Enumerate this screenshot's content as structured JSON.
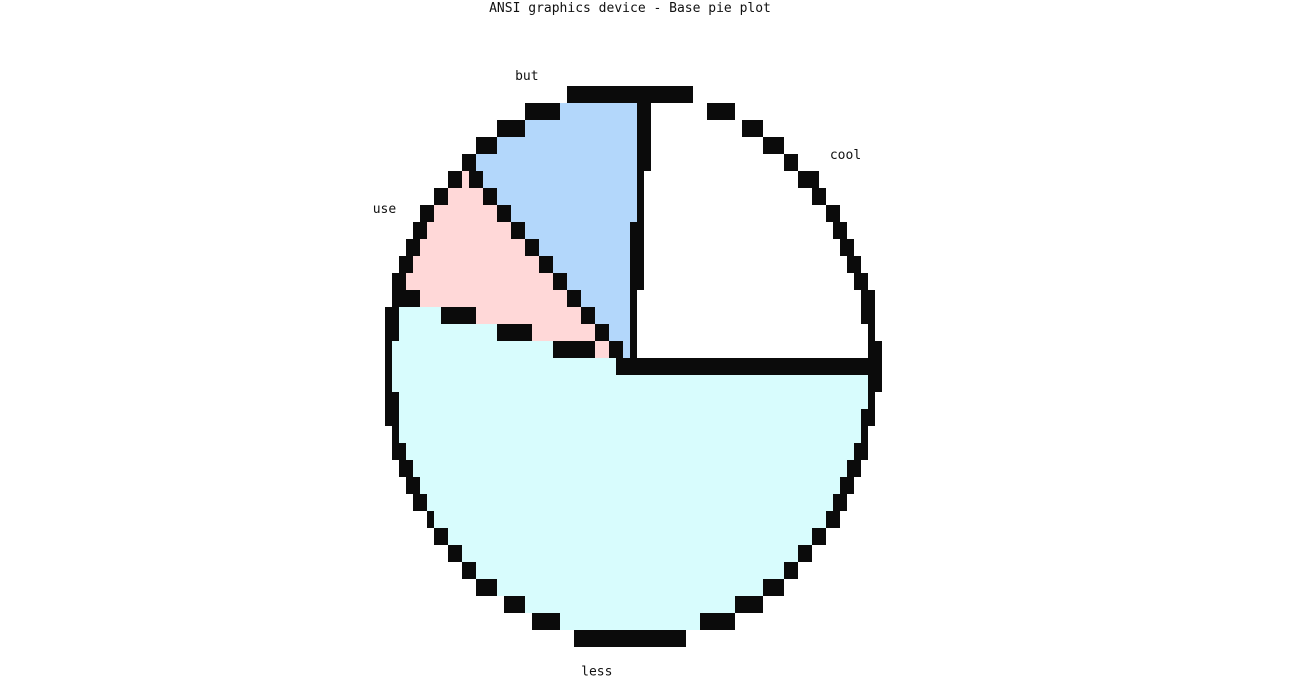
{
  "chart_data": {
    "type": "pie",
    "title": "ANSI graphics device - Base pie plot",
    "labels": [
      "cool",
      "but",
      "use",
      "less"
    ],
    "values": [
      24,
      13,
      9,
      54
    ],
    "colors": [
      "#ffffff",
      "#b3d7fb",
      "#ffd8d8",
      "#d8fcfd"
    ],
    "start_angle_deg": 0,
    "direction": "counterclockwise",
    "border_color": "#0b0b0b",
    "rendering": "pixelated"
  }
}
